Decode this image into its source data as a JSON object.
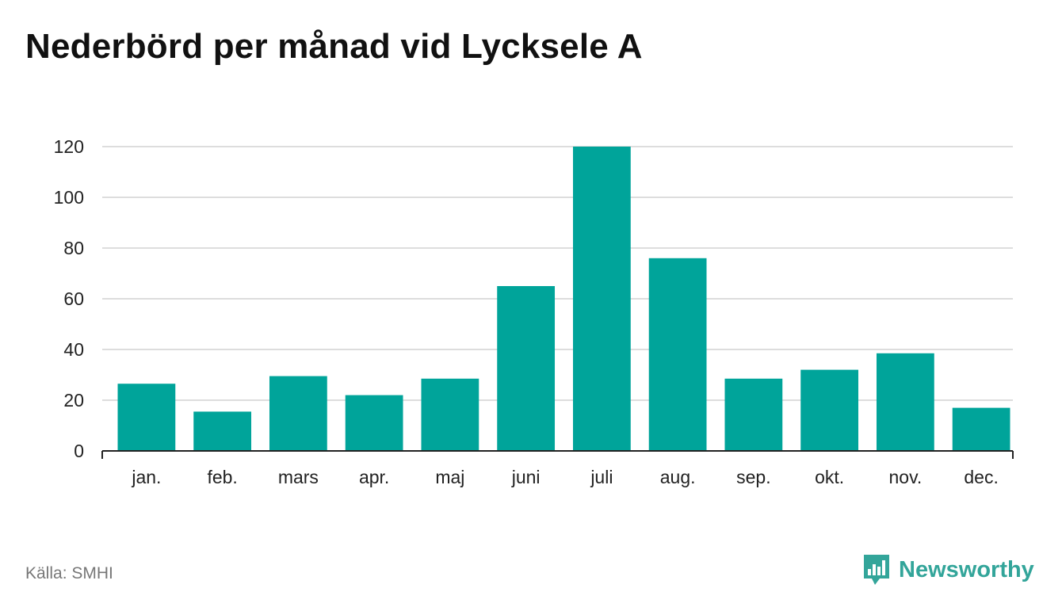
{
  "title": "Nederbörd per månad vid Lycksele A",
  "source": "Källa: SMHI",
  "brand": "Newsworthy",
  "colors": {
    "bar": "#00a49a",
    "grid": "#dddddd",
    "axis": "#222222",
    "brand": "#33a59a"
  },
  "chart_data": {
    "type": "bar",
    "title": "Nederbörd per månad vid Lycksele A",
    "xlabel": "",
    "ylabel": "",
    "categories": [
      "jan.",
      "feb.",
      "mars",
      "apr.",
      "maj",
      "juni",
      "juli",
      "aug.",
      "sep.",
      "okt.",
      "nov.",
      "dec."
    ],
    "values": [
      26.5,
      15.5,
      29.5,
      22,
      28.5,
      65,
      120,
      76,
      28.5,
      32,
      38.5,
      17
    ],
    "ylim": [
      0,
      120
    ],
    "yticks": [
      0,
      20,
      40,
      60,
      80,
      100,
      120
    ],
    "grid": true,
    "legend": "none"
  }
}
